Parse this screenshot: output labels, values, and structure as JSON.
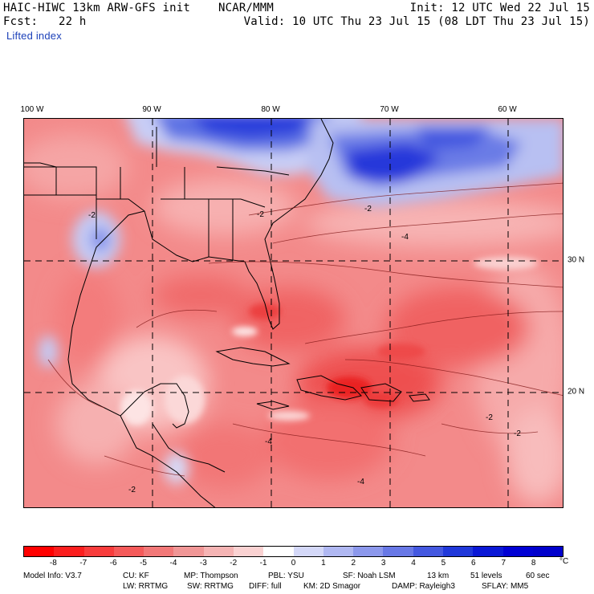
{
  "header": {
    "model_title": "HAIC-HIWC 13km ARW-GFS init",
    "org": "NCAR/MMM",
    "init": "Init: 12 UTC Wed 22 Jul 15",
    "forecast": "Fcst:   22 h",
    "valid": "Valid: 10 UTC Thu 23 Jul 15 (08 LDT Thu 23 Jul 15)",
    "field": "Lifted index"
  },
  "map": {
    "lon_labels": [
      "100 W",
      "90 W",
      "80 W",
      "70 W",
      "60 W"
    ],
    "lat_labels": [
      "30 N",
      "20 N"
    ],
    "contour_labels": [
      "-2",
      "-4"
    ]
  },
  "colorbar": {
    "unit": "°C",
    "ticks": [
      "-8",
      "-7",
      "-6",
      "-5",
      "-4",
      "-3",
      "-2",
      "-1",
      "0",
      "1",
      "2",
      "3",
      "4",
      "5",
      "6",
      "7",
      "8"
    ],
    "colors": [
      "#ff0000",
      "#fb1e1e",
      "#f83c3c",
      "#f55a5a",
      "#f27878",
      "#f09696",
      "#f5b4b4",
      "#fad2d2",
      "#ffffff",
      "#d4d8f8",
      "#b0b8f2",
      "#8c98ec",
      "#6878e6",
      "#4458e0",
      "#2038da",
      "#0a18d6",
      "#0000d4",
      "#0000cc"
    ]
  },
  "model_info": {
    "line1": [
      "Model Info: V3.7",
      "CU: KF",
      "MP: Thompson",
      "PBL: YSU",
      "SF: Noah LSM",
      "13 km",
      "51 levels",
      "60 sec"
    ],
    "line2": [
      "LW: RRTMG",
      "SW: RRTMG",
      "DIFF: full",
      "KM: 2D Smagor",
      "DAMP: Rayleigh3",
      "SFLAY: MM5"
    ]
  }
}
